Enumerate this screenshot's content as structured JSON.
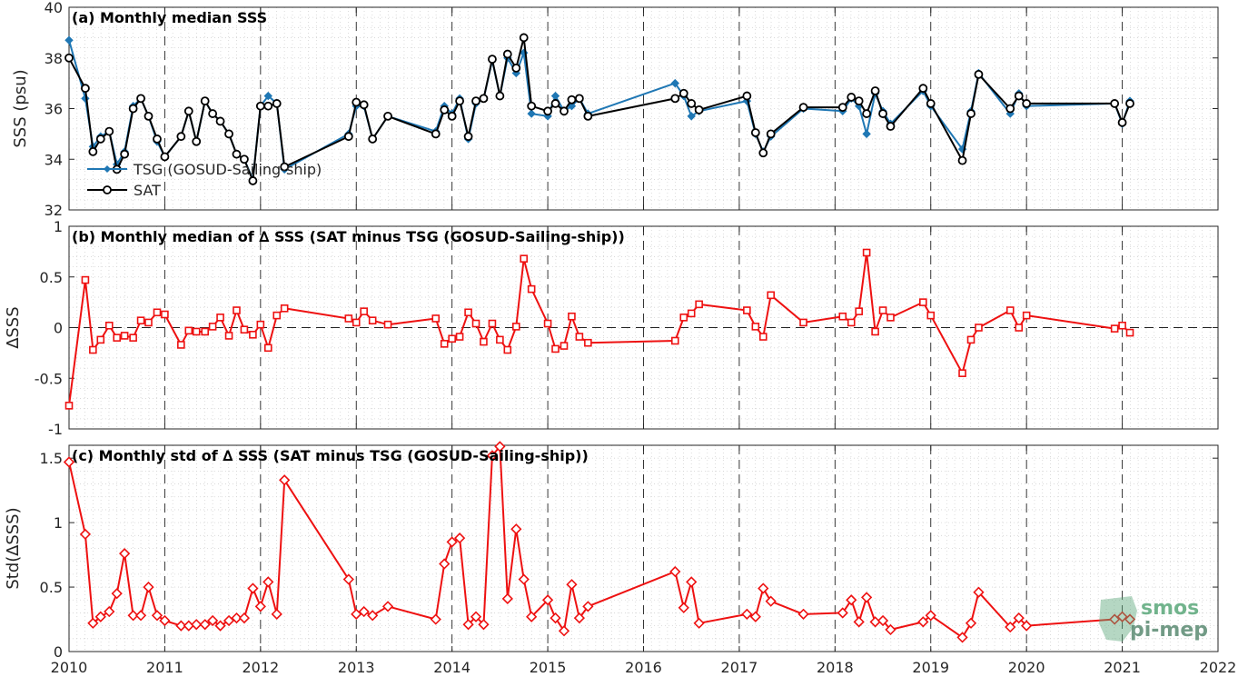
{
  "colors": {
    "tsg": "#1f77b4",
    "sat": "#000000",
    "delta": "#ee1111",
    "logo_green": "#5aa77a",
    "logo_gray": "#7a8c85"
  },
  "logo": {
    "line1": "smos",
    "line2": "pi-mep"
  },
  "chart_data": [
    {
      "type": "line",
      "title": "(a) Monthly median SSS",
      "ylabel": "SSS (psu)",
      "xlim": [
        2010,
        2022
      ],
      "ylim": [
        32,
        40
      ],
      "yticks": [
        32,
        34,
        36,
        38,
        40
      ],
      "xticks": [
        2010,
        2011,
        2012,
        2013,
        2014,
        2015,
        2016,
        2017,
        2018,
        2019,
        2020,
        2021,
        2022
      ],
      "legend_position": "lower-left",
      "legend": [
        "TSG (GOSUD-Sailing-ship)",
        "SAT"
      ],
      "grid": true,
      "series": [
        {
          "name": "TSG (GOSUD-Sailing-ship)",
          "x": [
            2010.0,
            2010.17,
            2010.25,
            2010.33,
            2010.42,
            2010.5,
            2010.58,
            2010.67,
            2010.75,
            2010.83,
            2010.92,
            2011.0,
            2011.17,
            2011.25,
            2011.33,
            2011.42,
            2011.5,
            2011.58,
            2011.67,
            2011.75,
            2011.83,
            2011.92,
            2012.0,
            2012.08,
            2012.17,
            2012.25,
            2012.92,
            2013.0,
            2013.08,
            2013.17,
            2013.33,
            2013.83,
            2013.92,
            2014.0,
            2014.08,
            2014.17,
            2014.25,
            2014.33,
            2014.42,
            2014.5,
            2014.58,
            2014.67,
            2014.75,
            2014.83,
            2015.0,
            2015.08,
            2015.17,
            2015.25,
            2015.33,
            2015.42,
            2016.33,
            2016.42,
            2016.5,
            2016.58,
            2017.08,
            2017.17,
            2017.25,
            2017.33,
            2017.67,
            2018.08,
            2018.17,
            2018.25,
            2018.33,
            2018.42,
            2018.5,
            2018.58,
            2018.92,
            2019.0,
            2019.33,
            2019.42,
            2019.5,
            2019.83,
            2019.92,
            2020.0,
            2020.92,
            2021.0,
            2021.08
          ],
          "y": [
            38.7,
            36.4,
            34.5,
            34.9,
            35.1,
            33.8,
            34.3,
            36.1,
            36.4,
            35.7,
            34.7,
            34.1,
            34.9,
            35.9,
            34.7,
            36.3,
            35.8,
            35.5,
            35.0,
            34.2,
            34.0,
            33.2,
            36.1,
            36.5,
            36.2,
            33.6,
            35.0,
            36.1,
            36.1,
            34.8,
            35.7,
            35.1,
            36.1,
            35.8,
            36.4,
            34.8,
            36.2,
            36.4,
            37.9,
            36.5,
            38.0,
            37.4,
            38.2,
            35.8,
            35.7,
            36.5,
            35.9,
            36.1,
            36.4,
            35.8,
            37.0,
            36.5,
            35.7,
            35.9,
            36.3,
            35.0,
            34.3,
            34.9,
            36.0,
            35.9,
            36.4,
            36.1,
            35.0,
            36.6,
            35.9,
            35.4,
            36.7,
            36.1,
            34.4,
            35.9,
            37.4,
            35.8,
            36.6,
            36.1,
            36.2,
            35.4,
            36.3
          ]
        },
        {
          "name": "SAT",
          "x": [
            2010.0,
            2010.17,
            2010.25,
            2010.33,
            2010.42,
            2010.5,
            2010.58,
            2010.67,
            2010.75,
            2010.83,
            2010.92,
            2011.0,
            2011.17,
            2011.25,
            2011.33,
            2011.42,
            2011.5,
            2011.58,
            2011.67,
            2011.75,
            2011.83,
            2011.92,
            2012.0,
            2012.08,
            2012.17,
            2012.25,
            2012.92,
            2013.0,
            2013.08,
            2013.17,
            2013.33,
            2013.83,
            2013.92,
            2014.0,
            2014.08,
            2014.17,
            2014.25,
            2014.33,
            2014.42,
            2014.5,
            2014.58,
            2014.67,
            2014.75,
            2014.83,
            2015.0,
            2015.08,
            2015.17,
            2015.25,
            2015.33,
            2015.42,
            2016.33,
            2016.42,
            2016.5,
            2016.58,
            2017.08,
            2017.17,
            2017.25,
            2017.33,
            2017.67,
            2018.08,
            2018.17,
            2018.25,
            2018.33,
            2018.42,
            2018.5,
            2018.58,
            2018.92,
            2019.0,
            2019.33,
            2019.42,
            2019.5,
            2019.83,
            2019.92,
            2020.0,
            2020.92,
            2021.0,
            2021.08
          ],
          "y": [
            38.0,
            36.8,
            34.3,
            34.8,
            35.1,
            33.6,
            34.2,
            36.0,
            36.4,
            35.7,
            34.8,
            34.1,
            34.9,
            35.9,
            34.7,
            36.3,
            35.8,
            35.5,
            35.0,
            34.2,
            34.0,
            33.15,
            36.1,
            36.1,
            36.2,
            33.7,
            34.9,
            36.25,
            36.15,
            34.8,
            35.7,
            35.0,
            35.95,
            35.7,
            36.3,
            34.9,
            36.3,
            36.4,
            37.95,
            36.5,
            38.15,
            37.6,
            38.8,
            36.1,
            35.9,
            36.2,
            35.9,
            36.35,
            36.4,
            35.7,
            36.4,
            36.6,
            36.2,
            35.95,
            36.5,
            35.05,
            34.25,
            35.0,
            36.05,
            36.05,
            36.45,
            36.3,
            35.8,
            36.7,
            35.8,
            35.3,
            36.8,
            36.2,
            33.95,
            35.8,
            37.35,
            36.0,
            36.5,
            36.2,
            36.2,
            35.45,
            36.2
          ]
        }
      ]
    },
    {
      "type": "line",
      "title": "(b) Monthly median of ∆ SSS (SAT minus TSG (GOSUD-Sailing-ship))",
      "ylabel": "∆SSS",
      "xlim": [
        2010,
        2022
      ],
      "ylim": [
        -1,
        1
      ],
      "yticks": [
        -1,
        -0.5,
        0,
        0.5,
        1
      ],
      "xticks": [
        2010,
        2011,
        2012,
        2013,
        2014,
        2015,
        2016,
        2017,
        2018,
        2019,
        2020,
        2021,
        2022
      ],
      "grid": true,
      "zero_line": true,
      "series": [
        {
          "name": "∆ SSS",
          "x": [
            2010.0,
            2010.17,
            2010.25,
            2010.33,
            2010.42,
            2010.5,
            2010.58,
            2010.67,
            2010.75,
            2010.83,
            2010.92,
            2011.0,
            2011.17,
            2011.25,
            2011.33,
            2011.42,
            2011.5,
            2011.58,
            2011.67,
            2011.75,
            2011.83,
            2011.92,
            2012.0,
            2012.08,
            2012.17,
            2012.25,
            2012.92,
            2013.0,
            2013.08,
            2013.17,
            2013.33,
            2013.83,
            2013.92,
            2014.0,
            2014.08,
            2014.17,
            2014.25,
            2014.33,
            2014.42,
            2014.5,
            2014.58,
            2014.67,
            2014.75,
            2014.83,
            2015.0,
            2015.08,
            2015.17,
            2015.25,
            2015.33,
            2015.42,
            2016.33,
            2016.42,
            2016.5,
            2016.58,
            2017.08,
            2017.17,
            2017.25,
            2017.33,
            2017.67,
            2018.08,
            2018.17,
            2018.25,
            2018.33,
            2018.42,
            2018.5,
            2018.58,
            2018.92,
            2019.0,
            2019.33,
            2019.42,
            2019.5,
            2019.83,
            2019.92,
            2020.0,
            2020.92,
            2021.0,
            2021.08
          ],
          "y": [
            -0.77,
            0.47,
            -0.22,
            -0.12,
            0.02,
            -0.1,
            -0.08,
            -0.1,
            0.07,
            0.05,
            0.15,
            0.13,
            -0.17,
            -0.03,
            -0.04,
            -0.04,
            0.01,
            0.1,
            -0.08,
            0.17,
            -0.02,
            -0.07,
            0.03,
            -0.2,
            0.12,
            0.19,
            0.09,
            0.05,
            0.16,
            0.07,
            0.03,
            0.09,
            -0.16,
            -0.11,
            -0.09,
            0.15,
            0.04,
            -0.14,
            0.04,
            -0.12,
            -0.22,
            0.01,
            0.68,
            0.38,
            0.04,
            -0.21,
            -0.18,
            0.11,
            -0.09,
            -0.15,
            -0.13,
            0.1,
            0.14,
            0.23,
            0.17,
            0.01,
            -0.09,
            0.32,
            0.05,
            0.11,
            0.05,
            0.16,
            0.74,
            -0.04,
            0.17,
            0.1,
            0.25,
            0.12,
            -0.45,
            -0.12,
            0.0,
            0.17,
            0.0,
            0.12,
            -0.01,
            0.02,
            -0.05
          ]
        }
      ]
    },
    {
      "type": "line",
      "title": "(c) Monthly std of ∆ SSS (SAT minus TSG (GOSUD-Sailing-ship))",
      "ylabel": "Std(∆SSS)",
      "xlim": [
        2010,
        2022
      ],
      "ylim": [
        0,
        1.6
      ],
      "yticks": [
        0,
        0.5,
        1,
        1.5
      ],
      "xticks": [
        2010,
        2011,
        2012,
        2013,
        2014,
        2015,
        2016,
        2017,
        2018,
        2019,
        2020,
        2021,
        2022
      ],
      "grid": true,
      "series": [
        {
          "name": "Std(∆SSS)",
          "x": [
            2010.0,
            2010.17,
            2010.25,
            2010.33,
            2010.42,
            2010.5,
            2010.58,
            2010.67,
            2010.75,
            2010.83,
            2010.92,
            2011.0,
            2011.17,
            2011.25,
            2011.33,
            2011.42,
            2011.5,
            2011.58,
            2011.67,
            2011.75,
            2011.83,
            2011.92,
            2012.0,
            2012.08,
            2012.17,
            2012.25,
            2012.92,
            2013.0,
            2013.08,
            2013.17,
            2013.33,
            2013.83,
            2013.92,
            2014.0,
            2014.08,
            2014.17,
            2014.25,
            2014.33,
            2014.42,
            2014.5,
            2014.58,
            2014.67,
            2014.75,
            2014.83,
            2015.0,
            2015.08,
            2015.17,
            2015.25,
            2015.33,
            2015.42,
            2016.33,
            2016.42,
            2016.5,
            2016.58,
            2017.08,
            2017.17,
            2017.25,
            2017.33,
            2017.67,
            2018.08,
            2018.17,
            2018.25,
            2018.33,
            2018.42,
            2018.5,
            2018.58,
            2018.92,
            2019.0,
            2019.33,
            2019.42,
            2019.5,
            2019.83,
            2019.92,
            2020.0,
            2020.92,
            2021.0,
            2021.08
          ],
          "y": [
            1.47,
            0.91,
            0.22,
            0.27,
            0.31,
            0.45,
            0.76,
            0.28,
            0.28,
            0.5,
            0.28,
            0.24,
            0.2,
            0.2,
            0.21,
            0.21,
            0.24,
            0.2,
            0.24,
            0.26,
            0.26,
            0.49,
            0.35,
            0.54,
            0.29,
            1.33,
            0.56,
            0.29,
            0.31,
            0.28,
            0.35,
            0.25,
            0.68,
            0.85,
            0.88,
            0.21,
            0.27,
            0.21,
            1.52,
            1.59,
            0.41,
            0.95,
            0.56,
            0.27,
            0.4,
            0.26,
            0.16,
            0.52,
            0.26,
            0.35,
            0.62,
            0.34,
            0.54,
            0.22,
            0.29,
            0.27,
            0.49,
            0.39,
            0.29,
            0.3,
            0.4,
            0.23,
            0.42,
            0.23,
            0.24,
            0.17,
            0.23,
            0.28,
            0.11,
            0.22,
            0.46,
            0.19,
            0.26,
            0.2,
            0.25,
            0.27,
            0.25
          ]
        }
      ]
    }
  ]
}
